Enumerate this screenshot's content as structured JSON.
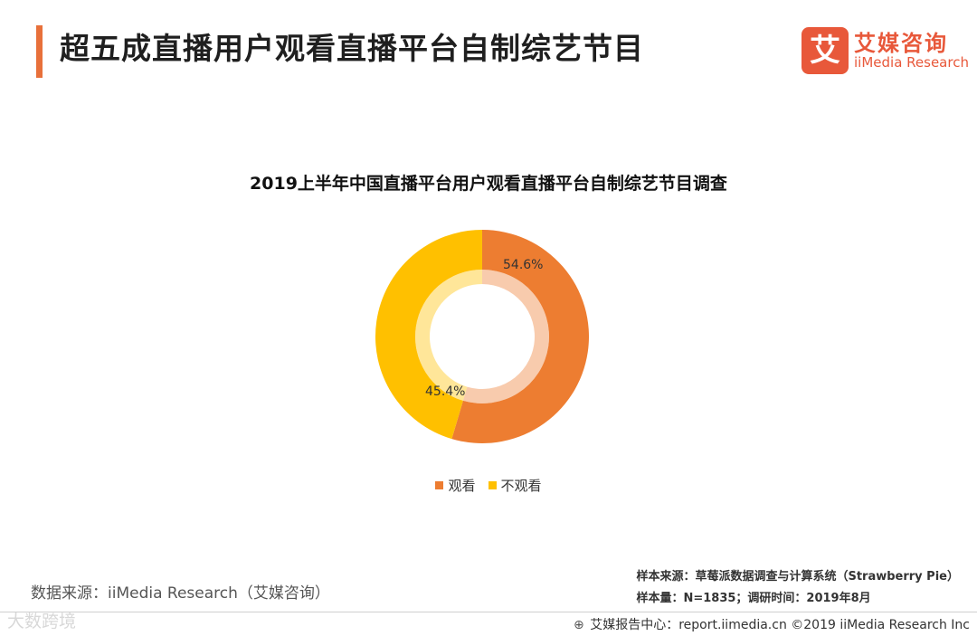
{
  "header": {
    "title": "超五成直播用户观看直播平台自制综艺节目"
  },
  "logo": {
    "mark": "艾",
    "cn": "艾媒咨询",
    "en": "iiMedia Research"
  },
  "chart_data": {
    "type": "pie",
    "donut": true,
    "title": "2019上半年中国直播平台用户观看直播平台自制综艺节目调查",
    "categories": [
      "观看",
      "不观看"
    ],
    "values": [
      54.6,
      45.4
    ],
    "labels": [
      "54.6%",
      "45.4%"
    ],
    "colors": [
      "#ed7d31",
      "#ffc000"
    ],
    "legend_position": "bottom"
  },
  "source": {
    "text": "数据来源：iiMedia Research（艾媒咨询）"
  },
  "sample": {
    "line1": "样本来源：草莓派数据调查与计算系统（Strawberry Pie）",
    "line2": "样本量：N=1835；调研时间：2019年8月"
  },
  "footer": {
    "text": "艾媒报告中心：report.iimedia.cn ©2019 iiMedia Research Inc"
  },
  "watermark": {
    "text": "大数跨境"
  }
}
